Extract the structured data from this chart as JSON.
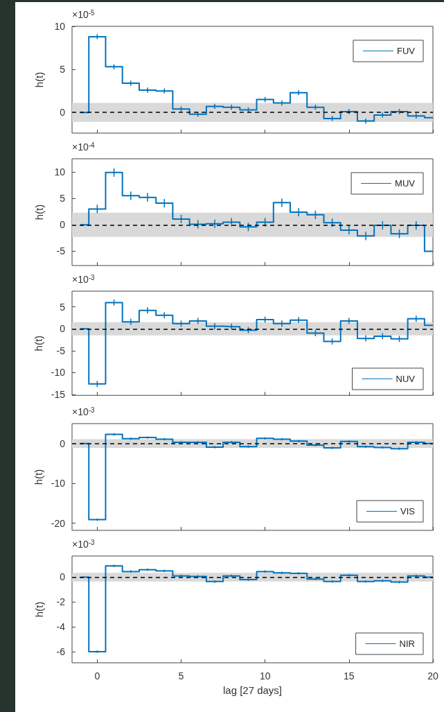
{
  "chart_data": [
    {
      "type": "step",
      "annotations": [
        "×10$^{-5}$"
      ],
      "ylabel": "h(t)",
      "x": [
        -1,
        0,
        1,
        2,
        3,
        4,
        5,
        6,
        7,
        8,
        9,
        10,
        11,
        12,
        13,
        14,
        15,
        16,
        17,
        18,
        19,
        20
      ],
      "series": [
        {
          "name": "FUV",
          "color": "#0072bd",
          "values": [
            0,
            8.8,
            5.3,
            3.4,
            2.6,
            2.5,
            0.4,
            -0.2,
            0.7,
            0.6,
            0.3,
            1.5,
            1.1,
            2.3,
            0.6,
            -0.7,
            0.1,
            -1.0,
            -0.3,
            0.1,
            -0.4,
            -0.6
          ],
          "errors": [
            null,
            0.3,
            0.3,
            0.3,
            0.3,
            0.3,
            0.3,
            0.3,
            0.3,
            0.3,
            0.3,
            0.3,
            0.3,
            0.3,
            0.3,
            0.3,
            0.3,
            0.3,
            0.3,
            0.3,
            0.3,
            null
          ]
        }
      ],
      "xlim": [
        -1.5,
        20
      ],
      "xticks": [
        0,
        5,
        10,
        15,
        20
      ],
      "ylim": [
        -2.4,
        10
      ],
      "yticks": [
        0,
        5,
        10
      ],
      "bands": [
        {
          "axis": "y",
          "from": -1.1,
          "to": 1.1,
          "color": "#d9d9d9"
        }
      ],
      "ref_lines": [
        {
          "axis": "y",
          "value": 0,
          "color": "#000000",
          "line_style": "dashed"
        }
      ],
      "legend": "top right",
      "tick_labels": "y"
    },
    {
      "type": "step",
      "annotations": [
        "×10$^{-4}$"
      ],
      "ylabel": "h(t)",
      "x": [
        -1,
        0,
        1,
        2,
        3,
        4,
        5,
        6,
        7,
        8,
        9,
        10,
        11,
        12,
        13,
        14,
        15,
        16,
        17,
        18,
        19,
        20
      ],
      "series": [
        {
          "name": "MUV",
          "color": "#0072bd",
          "values": [
            0,
            3.0,
            9.9,
            5.5,
            5.2,
            4.1,
            1.1,
            0.1,
            0.2,
            0.5,
            -0.4,
            0.5,
            4.2,
            2.4,
            1.9,
            0.4,
            -1.0,
            -2.1,
            -0.1,
            -1.7,
            -0.1,
            -5.0
          ],
          "errors": [
            null,
            0.8,
            0.8,
            0.8,
            0.8,
            0.8,
            0.8,
            0.8,
            0.8,
            0.8,
            0.8,
            0.8,
            0.8,
            0.8,
            0.8,
            0.8,
            0.8,
            0.8,
            0.8,
            0.8,
            0.8,
            null
          ]
        }
      ],
      "xlim": [
        -1.5,
        20
      ],
      "xticks": [
        0,
        5,
        10,
        15,
        20
      ],
      "ylim": [
        -7.7,
        12.5
      ],
      "yticks": [
        -5,
        0,
        5,
        10
      ],
      "bands": [
        {
          "axis": "y",
          "from": -2.3,
          "to": 2.3,
          "color": "#d9d9d9"
        }
      ],
      "ref_lines": [
        {
          "axis": "y",
          "value": 0,
          "color": "#000000",
          "line_style": "dashed"
        }
      ],
      "legend": "top right",
      "tick_labels": "y"
    },
    {
      "type": "step",
      "annotations": [
        "×10$^{-3}$"
      ],
      "ylabel": "h(t)",
      "x": [
        -1,
        0,
        1,
        2,
        3,
        4,
        5,
        6,
        7,
        8,
        9,
        10,
        11,
        12,
        13,
        14,
        15,
        16,
        17,
        18,
        19,
        20
      ],
      "series": [
        {
          "name": "NUV",
          "color": "#0072bd",
          "values": [
            0,
            -12.6,
            6.0,
            1.6,
            4.2,
            3.1,
            1.2,
            1.8,
            0.6,
            0.5,
            -0.3,
            2.1,
            1.2,
            2.0,
            -1.0,
            -2.9,
            1.8,
            -2.2,
            -1.7,
            -2.3,
            2.3,
            0.8
          ],
          "errors": [
            null,
            0.7,
            0.7,
            0.7,
            0.7,
            0.7,
            0.7,
            0.7,
            0.7,
            0.7,
            0.7,
            0.7,
            0.7,
            0.7,
            0.7,
            0.7,
            0.7,
            0.7,
            0.7,
            0.7,
            0.7,
            null
          ]
        }
      ],
      "xlim": [
        -1.5,
        20
      ],
      "xticks": [
        0,
        5,
        10,
        15,
        20
      ],
      "ylim": [
        -15.2,
        8.6
      ],
      "yticks": [
        -15,
        -10,
        -5,
        0,
        5
      ],
      "bands": [
        {
          "axis": "y",
          "from": -1.5,
          "to": 1.5,
          "color": "#d9d9d9"
        }
      ],
      "ref_lines": [
        {
          "axis": "y",
          "value": 0,
          "color": "#000000",
          "line_style": "dashed"
        }
      ],
      "legend": "bottom right",
      "tick_labels": "y"
    },
    {
      "type": "step",
      "annotations": [
        "×10$^{-3}$"
      ],
      "ylabel": "h(t)",
      "x": [
        -1,
        0,
        1,
        2,
        3,
        4,
        5,
        6,
        7,
        8,
        9,
        10,
        11,
        12,
        13,
        14,
        15,
        16,
        17,
        18,
        19,
        20
      ],
      "series": [
        {
          "name": "VIS",
          "color": "#0072bd",
          "values": [
            0,
            -19.1,
            2.3,
            1.2,
            1.5,
            1.1,
            0.3,
            0.3,
            -0.9,
            0.3,
            -0.8,
            1.3,
            1.1,
            0.6,
            -0.4,
            -1.1,
            0.5,
            -0.8,
            -1.0,
            -1.3,
            0.3,
            0.0
          ],
          "errors": [
            null,
            0.3,
            0.3,
            0.3,
            0.3,
            0.3,
            0.3,
            0.3,
            0.3,
            0.3,
            0.3,
            0.3,
            0.3,
            0.3,
            0.3,
            0.3,
            0.3,
            0.3,
            0.3,
            0.3,
            0.3,
            null
          ]
        }
      ],
      "xlim": [
        -1.5,
        20
      ],
      "xticks": [
        0,
        5,
        10,
        15,
        20
      ],
      "ylim": [
        -21.8,
        5
      ],
      "yticks": [
        -20,
        -10,
        0
      ],
      "bands": [
        {
          "axis": "y",
          "from": -1.1,
          "to": 1.1,
          "color": "#d9d9d9"
        }
      ],
      "ref_lines": [
        {
          "axis": "y",
          "value": 0,
          "color": "#000000",
          "line_style": "dashed"
        }
      ],
      "legend": "bottom right",
      "tick_labels": "y"
    },
    {
      "type": "step",
      "annotations": [
        "×10$^{-3}$"
      ],
      "ylabel": "h(t)",
      "xlabel": "lag [27 days]",
      "x": [
        -1,
        0,
        1,
        2,
        3,
        4,
        5,
        6,
        7,
        8,
        9,
        10,
        11,
        12,
        13,
        14,
        15,
        16,
        17,
        18,
        19,
        20
      ],
      "series": [
        {
          "name": "NIR",
          "color": "#0072bd",
          "values": [
            0,
            -6.0,
            0.9,
            0.45,
            0.6,
            0.5,
            0.1,
            0.05,
            -0.35,
            0.1,
            -0.2,
            0.45,
            0.35,
            0.3,
            -0.15,
            -0.35,
            0.15,
            -0.35,
            -0.3,
            -0.4,
            0.1,
            0.0
          ],
          "errors": [
            null,
            0.1,
            0.1,
            0.1,
            0.1,
            0.1,
            0.1,
            0.1,
            0.1,
            0.1,
            0.1,
            0.1,
            0.1,
            0.1,
            0.1,
            0.1,
            0.1,
            0.1,
            0.1,
            0.1,
            0.1,
            null
          ]
        }
      ],
      "xlim": [
        -1.5,
        20
      ],
      "xticks": [
        0,
        5,
        10,
        15,
        20
      ],
      "ylim": [
        -6.9,
        1.7
      ],
      "yticks": [
        -6,
        -4,
        -2,
        0
      ],
      "bands": [
        {
          "axis": "y",
          "from": -0.35,
          "to": 0.35,
          "color": "#d9d9d9"
        }
      ],
      "ref_lines": [
        {
          "axis": "y",
          "value": 0,
          "color": "#000000",
          "line_style": "dashed"
        }
      ],
      "legend": "bottom right"
    }
  ]
}
